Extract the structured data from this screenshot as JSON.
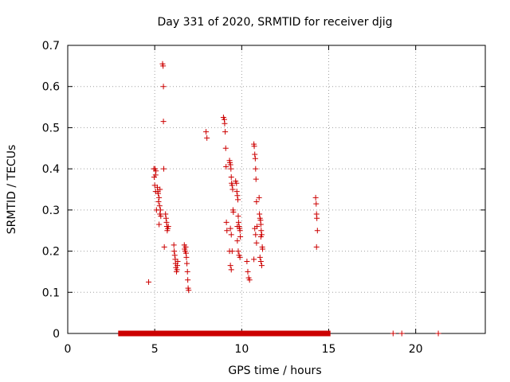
{
  "chart_data": {
    "type": "scatter",
    "title": "Day 331 of 2020, SRMTID for receiver djig",
    "xlabel": "GPS time / hours",
    "ylabel": "SRMTID / TECUs",
    "xlim": [
      0,
      24
    ],
    "ylim": [
      0,
      0.7
    ],
    "xticks": [
      0,
      5,
      10,
      15,
      20
    ],
    "yticks": [
      0,
      0.1,
      0.2,
      0.3,
      0.4,
      0.5,
      0.6,
      0.7
    ],
    "xtick_labels": [
      "0",
      "5",
      "10",
      "15",
      "20"
    ],
    "ytick_labels": [
      "0",
      "0.1",
      "0.2",
      "0.3",
      "0.4",
      "0.5",
      "0.6",
      "0.7"
    ],
    "grid": true,
    "marker": "+",
    "color": "#cc0000",
    "series": [
      {
        "name": "SRMTID",
        "x": [
          4.65,
          4.95,
          4.97,
          5.0,
          5.02,
          5.05,
          5.05,
          5.07,
          5.1,
          5.15,
          5.18,
          5.2,
          5.22,
          5.25,
          5.25,
          5.28,
          5.3,
          5.3,
          5.33,
          5.35,
          5.45,
          5.48,
          5.5,
          5.5,
          5.52,
          5.55,
          5.62,
          5.65,
          5.68,
          5.7,
          5.72,
          5.75,
          5.78,
          6.1,
          6.12,
          6.15,
          6.18,
          6.2,
          6.22,
          6.25,
          6.28,
          6.3,
          6.32,
          6.7,
          6.72,
          6.75,
          6.78,
          6.8,
          6.82,
          6.85,
          6.88,
          6.9,
          6.92,
          6.95,
          7.95,
          8.0,
          8.95,
          9.0,
          9.02,
          9.05,
          9.08,
          9.1,
          9.12,
          9.15,
          9.3,
          9.32,
          9.35,
          9.38,
          9.4,
          9.42,
          9.45,
          9.48,
          9.5,
          9.52,
          9.35,
          9.4,
          9.45,
          9.3,
          9.35,
          9.4,
          9.65,
          9.7,
          9.72,
          9.75,
          9.78,
          9.8,
          9.82,
          9.85,
          9.88,
          9.9,
          9.92,
          9.75,
          9.8,
          9.85,
          9.9,
          9.75,
          10.3,
          10.35,
          10.4,
          10.45,
          10.7,
          10.72,
          10.75,
          10.78,
          10.8,
          10.82,
          10.85,
          10.88,
          10.75,
          10.8,
          10.85,
          10.7,
          11.0,
          11.02,
          11.05,
          11.08,
          11.1,
          11.12,
          11.15,
          11.18,
          11.2,
          11.05,
          11.1,
          11.15,
          11.1,
          14.25,
          14.28,
          14.3,
          14.32,
          14.35,
          14.3
        ],
        "y": [
          0.125,
          0.4,
          0.38,
          0.36,
          0.4,
          0.385,
          0.345,
          0.395,
          0.3,
          0.355,
          0.345,
          0.34,
          0.32,
          0.33,
          0.265,
          0.31,
          0.35,
          0.29,
          0.3,
          0.285,
          0.655,
          0.65,
          0.6,
          0.515,
          0.4,
          0.21,
          0.29,
          0.28,
          0.27,
          0.26,
          0.25,
          0.255,
          0.26,
          0.215,
          0.2,
          0.19,
          0.18,
          0.17,
          0.16,
          0.15,
          0.155,
          0.165,
          0.175,
          0.215,
          0.205,
          0.2,
          0.21,
          0.195,
          0.185,
          0.17,
          0.15,
          0.13,
          0.11,
          0.105,
          0.49,
          0.475,
          0.525,
          0.52,
          0.51,
          0.49,
          0.45,
          0.405,
          0.27,
          0.25,
          0.42,
          0.415,
          0.41,
          0.4,
          0.38,
          0.365,
          0.36,
          0.35,
          0.3,
          0.295,
          0.255,
          0.24,
          0.2,
          0.2,
          0.165,
          0.155,
          0.37,
          0.365,
          0.345,
          0.335,
          0.325,
          0.285,
          0.27,
          0.26,
          0.255,
          0.25,
          0.235,
          0.225,
          0.2,
          0.19,
          0.185,
          0.26,
          0.175,
          0.15,
          0.135,
          0.13,
          0.46,
          0.455,
          0.435,
          0.425,
          0.4,
          0.375,
          0.32,
          0.26,
          0.255,
          0.24,
          0.22,
          0.18,
          0.33,
          0.29,
          0.28,
          0.275,
          0.265,
          0.25,
          0.24,
          0.21,
          0.205,
          0.185,
          0.175,
          0.165,
          0.235,
          0.33,
          0.315,
          0.29,
          0.28,
          0.25,
          0.21
        ]
      },
      {
        "name": "SRMTID (zero level)",
        "x_range": [
          2.9,
          15.1
        ],
        "x": [
          18.7,
          19.2,
          21.3
        ],
        "y": [
          0,
          0,
          0
        ]
      }
    ]
  }
}
